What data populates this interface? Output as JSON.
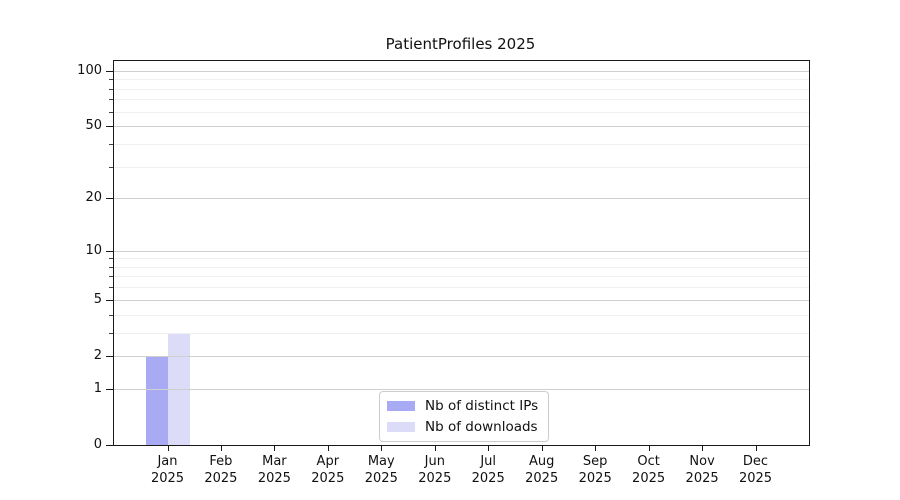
{
  "chart_title": "PatientProfiles 2025",
  "chart_data": {
    "type": "bar",
    "title": "PatientProfiles 2025",
    "categories": [
      "Jan 2025",
      "Feb 2025",
      "Mar 2025",
      "Apr 2025",
      "May 2025",
      "Jun 2025",
      "Jul 2025",
      "Aug 2025",
      "Sep 2025",
      "Oct 2025",
      "Nov 2025",
      "Dec 2025"
    ],
    "series": [
      {
        "name": "Nb of distinct IPs",
        "color": "#a9aaf4",
        "values": [
          2,
          0,
          0,
          0,
          0,
          0,
          0,
          0,
          0,
          0,
          0,
          0
        ]
      },
      {
        "name": "Nb of downloads",
        "color": "#dcdcf8",
        "values": [
          3,
          0,
          0,
          0,
          0,
          0,
          0,
          0,
          0,
          0,
          0,
          0
        ]
      }
    ],
    "xlabel": "",
    "ylabel": "",
    "scale": "log1p",
    "ylim": [
      0,
      113
    ],
    "y_max": 113,
    "y_ticks": [
      0,
      1,
      2,
      5,
      10,
      20,
      50,
      100
    ],
    "y_minor_ticks": [
      3,
      4,
      6,
      7,
      8,
      9,
      30,
      40,
      60,
      70,
      80,
      90
    ],
    "grid": true,
    "legend_position": "lower center"
  }
}
